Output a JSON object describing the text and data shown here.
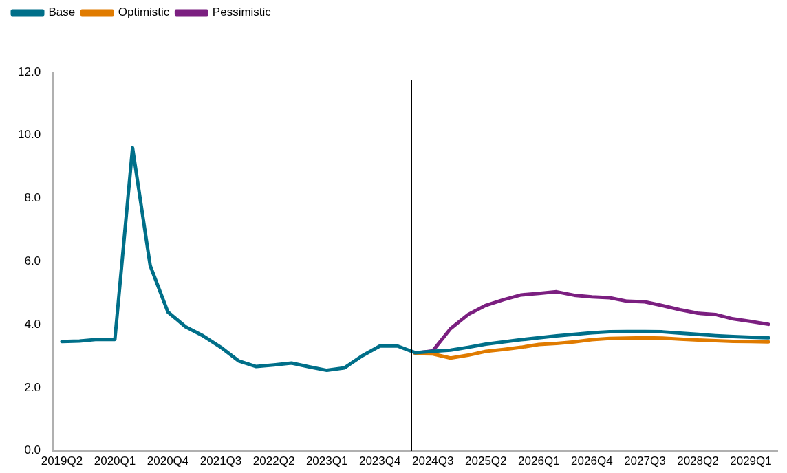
{
  "chart_data": {
    "type": "line",
    "categories": [
      "2019Q2",
      null,
      null,
      "2020Q1",
      null,
      null,
      "2020Q4",
      null,
      null,
      "2021Q3",
      null,
      null,
      "2022Q2",
      null,
      null,
      "2023Q1",
      null,
      null,
      "2023Q4",
      null,
      null,
      "2024Q3",
      null,
      null,
      "2025Q2",
      null,
      null,
      "2026Q1",
      null,
      null,
      "2026Q4",
      null,
      null,
      "2027Q3",
      null,
      null,
      "2028Q2",
      null,
      null,
      "2029Q1",
      null
    ],
    "series": [
      {
        "name": "Base",
        "color": "#006f89",
        "values": [
          3.46,
          3.48,
          3.53,
          3.53,
          9.6,
          5.87,
          4.4,
          3.93,
          3.64,
          3.28,
          2.85,
          2.67,
          2.72,
          2.78,
          2.66,
          2.55,
          2.63,
          3.01,
          3.32,
          3.32,
          3.11,
          3.15,
          3.19,
          3.28,
          3.38,
          3.45,
          3.52,
          3.58,
          3.64,
          3.69,
          3.74,
          3.77,
          3.78,
          3.78,
          3.77,
          3.73,
          3.69,
          3.65,
          3.62,
          3.6,
          3.58
        ]
      },
      {
        "name": "Optimistic",
        "color": "#e07b00",
        "values": [
          null,
          null,
          null,
          null,
          null,
          null,
          null,
          null,
          null,
          null,
          null,
          null,
          null,
          null,
          null,
          null,
          null,
          null,
          null,
          null,
          3.08,
          3.07,
          2.94,
          3.03,
          3.15,
          3.21,
          3.28,
          3.37,
          3.4,
          3.45,
          3.52,
          3.56,
          3.57,
          3.58,
          3.57,
          3.54,
          3.51,
          3.49,
          3.47,
          3.46,
          3.45
        ]
      },
      {
        "name": "Pessimistic",
        "color": "#7b1f80",
        "values": [
          null,
          null,
          null,
          null,
          null,
          null,
          null,
          null,
          null,
          null,
          null,
          null,
          null,
          null,
          null,
          null,
          null,
          null,
          null,
          null,
          3.09,
          3.17,
          3.87,
          4.32,
          4.61,
          4.79,
          4.94,
          4.99,
          5.04,
          4.93,
          4.88,
          4.85,
          4.74,
          4.72,
          4.6,
          4.47,
          4.36,
          4.32,
          4.18,
          4.1,
          4.01
        ]
      }
    ],
    "ylim": [
      0,
      12
    ],
    "yticks": [
      {
        "value": 0,
        "label": "0.0"
      },
      {
        "value": 2,
        "label": "2.0"
      },
      {
        "value": 4,
        "label": "4.0"
      },
      {
        "value": 6,
        "label": "6.0"
      },
      {
        "value": 8,
        "label": "8.0"
      },
      {
        "value": 10,
        "label": "10.0"
      },
      {
        "value": 12,
        "label": "12.0"
      }
    ],
    "grid": false,
    "legend": "top left",
    "marker": "none",
    "line_style": "solid"
  }
}
